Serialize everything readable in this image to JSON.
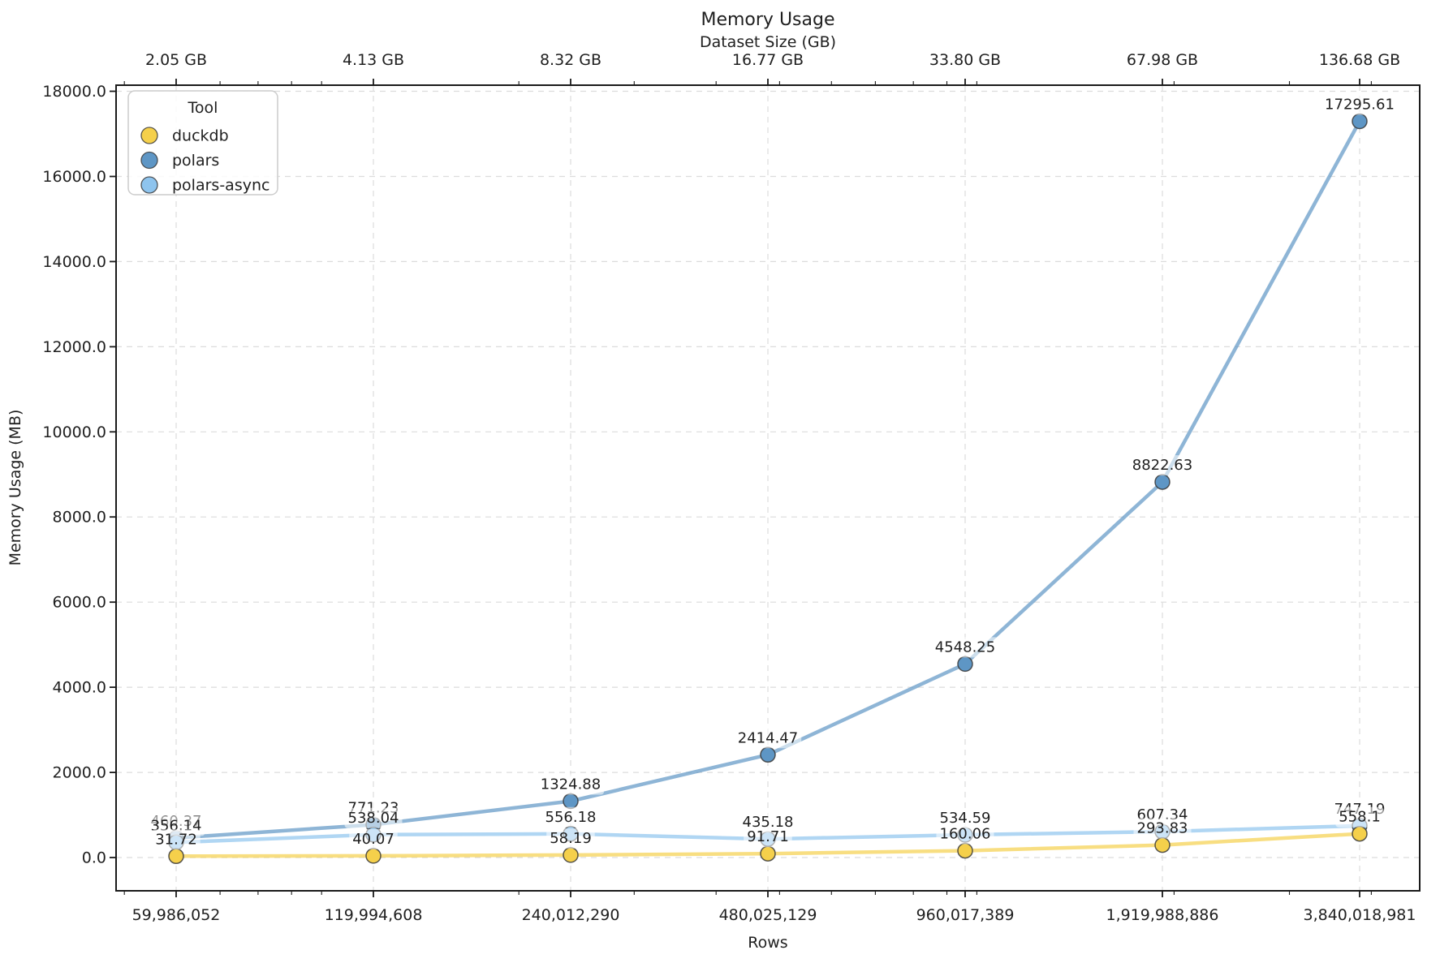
{
  "chart_data": {
    "type": "line",
    "title": "Memory Usage",
    "xlabel": "Rows",
    "ylabel": "Memory Usage (MB)",
    "xscale": "log",
    "grid": true,
    "top_axis": {
      "label": "Dataset Size (GB)",
      "tick_labels": [
        "2.05 GB",
        "4.13 GB",
        "8.32 GB",
        "16.77 GB",
        "33.80 GB",
        "67.98 GB",
        "136.68 GB"
      ]
    },
    "x_tick_labels": [
      "59,986,052",
      "119,994,608",
      "240,012,290",
      "480,025,129",
      "960,017,389",
      "1,919,988,886",
      "3,840,018,981"
    ],
    "x_values": [
      59986052,
      119994608,
      240012290,
      480025129,
      960017389,
      1919988886,
      3840018981
    ],
    "y_ticks": [
      0,
      2000,
      4000,
      6000,
      8000,
      10000,
      12000,
      14000,
      16000,
      18000
    ],
    "y_tick_labels": [
      "0.0",
      "2000.0",
      "4000.0",
      "6000.0",
      "8000.0",
      "10000.0",
      "12000.0",
      "14000.0",
      "16000.0",
      "18000.0"
    ],
    "ylim": [
      -781,
      18144
    ],
    "legend": {
      "title": "Tool",
      "position": "upper-left",
      "entries": [
        "duckdb",
        "polars",
        "polars-async"
      ]
    },
    "series": [
      {
        "name": "duckdb",
        "color": "#F5D04B",
        "values": [
          31.72,
          40.07,
          58.19,
          91.71,
          160.06,
          293.83,
          558.1
        ],
        "labels": [
          "31.72",
          "40.07",
          "58.19",
          "91.71",
          "160.06",
          "293.83",
          "558.1"
        ]
      },
      {
        "name": "polars",
        "color": "#5E96C5",
        "values": [
          460.37,
          771.23,
          1324.88,
          2414.47,
          4548.25,
          8822.63,
          17295.61
        ],
        "labels": [
          "460.37",
          "771.23",
          "1324.88",
          "2414.47",
          "4548.25",
          "8822.63",
          "17295.61"
        ]
      },
      {
        "name": "polars-async",
        "color": "#8EC4EE",
        "values": [
          356.14,
          538.04,
          556.18,
          435.18,
          534.59,
          607.34,
          747.19
        ],
        "labels": [
          "356.14",
          "538.04",
          "556.18",
          "435.18",
          "534.59",
          "607.34",
          "747.19"
        ]
      }
    ],
    "z_order": [
      "polars",
      "polars-async",
      "duckdb"
    ],
    "colors": {
      "grid": "#dcdcdc",
      "frame": "#1a1a1a",
      "label_box": "rgba(255,255,255,0.55)"
    }
  }
}
